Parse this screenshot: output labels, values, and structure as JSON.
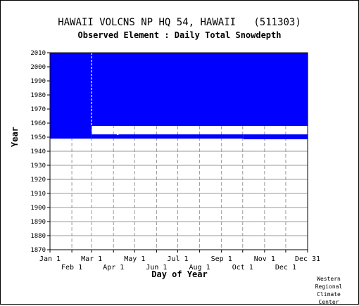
{
  "title": "HAWAII VOLCNS NP HQ 54, HAWAII   (511303)",
  "subtitle": "Observed Element : Daily Total Snowdepth",
  "credit": [
    "Western",
    "Regional",
    "Climate",
    "Center"
  ],
  "colors": {
    "fill": "#0000ff",
    "grid": "#9a9a9a",
    "axis": "#000000",
    "gap": "#ffffff"
  },
  "chart_data": {
    "type": "heatmap",
    "title": "HAWAII VOLCNS NP HQ 54, HAWAII   (511303)",
    "subtitle": "Observed Element : Daily Total Snowdepth",
    "xlabel": "Day of Year",
    "ylabel": "Year",
    "xlim": [
      1,
      366
    ],
    "ylim": [
      1870,
      2010
    ],
    "grid": true,
    "y_ticks": [
      1870,
      1880,
      1890,
      1900,
      1910,
      1920,
      1930,
      1940,
      1950,
      1960,
      1970,
      1980,
      1990,
      2000,
      2010
    ],
    "x_ticks_top_row": [
      {
        "label": "Jan 1",
        "day": 1
      },
      {
        "label": "Mar 1",
        "day": 60
      },
      {
        "label": "May 1",
        "day": 121
      },
      {
        "label": "Jul 1",
        "day": 182
      },
      {
        "label": "Sep 1",
        "day": 244
      },
      {
        "label": "Nov 1",
        "day": 305
      },
      {
        "label": "Dec 31",
        "day": 366
      }
    ],
    "x_ticks_bottom_row": [
      {
        "label": "Feb 1",
        "day": 32
      },
      {
        "label": "Apr 1",
        "day": 91
      },
      {
        "label": "Jun 1",
        "day": 152
      },
      {
        "label": "Aug 1",
        "day": 213
      },
      {
        "label": "Oct 1",
        "day": 274
      },
      {
        "label": "Dec 1",
        "day": 335
      }
    ],
    "records": [
      {
        "day_start": 1,
        "day_end": 366,
        "year_start": 1958,
        "year_end": 2010,
        "status": "observed"
      },
      {
        "day_start": 1,
        "day_end": 60,
        "year_start": 1949,
        "year_end": 1958,
        "status": "observed"
      },
      {
        "day_start": 60,
        "day_end": 275,
        "year_start": 1949,
        "year_end": 1952,
        "status": "observed"
      },
      {
        "day_start": 275,
        "day_end": 366,
        "year_start": 1948.5,
        "year_end": 1952,
        "status": "observed"
      }
    ],
    "gaps": [
      {
        "day": 60,
        "year_start": 1958,
        "year_end": 2010
      },
      {
        "day_start": 62,
        "day_end": 92,
        "year": 1956
      },
      {
        "day": 97,
        "year": 1952
      }
    ]
  }
}
